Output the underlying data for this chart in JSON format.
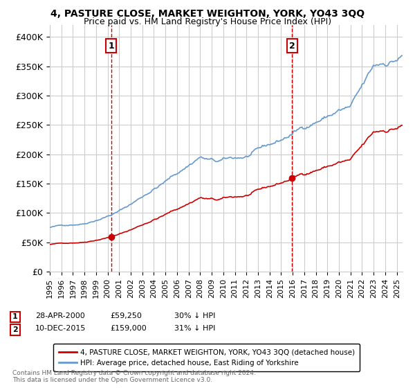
{
  "title": "4, PASTURE CLOSE, MARKET WEIGHTON, YORK, YO43 3QQ",
  "subtitle": "Price paid vs. HM Land Registry's House Price Index (HPI)",
  "legend_label_red": "4, PASTURE CLOSE, MARKET WEIGHTON, YORK, YO43 3QQ (detached house)",
  "legend_label_blue": "HPI: Average price, detached house, East Riding of Yorkshire",
  "annotation1_date": "28-APR-2000",
  "annotation1_price": "£59,250",
  "annotation1_hpi": "30% ↓ HPI",
  "annotation2_date": "10-DEC-2015",
  "annotation2_price": "£159,000",
  "annotation2_hpi": "31% ↓ HPI",
  "footer": "Contains HM Land Registry data © Crown copyright and database right 2024.\nThis data is licensed under the Open Government Licence v3.0.",
  "sale1_x": 2000.32,
  "sale1_y": 59250,
  "sale2_x": 2015.94,
  "sale2_y": 159000,
  "red_color": "#cc0000",
  "blue_color": "#6699cc",
  "vline_color": "#cc0000",
  "grid_color": "#cccccc",
  "background_color": "#ffffff",
  "ylim": [
    0,
    420000
  ],
  "xlim_start": 1995.0,
  "xlim_end": 2025.5,
  "yticks": [
    0,
    50000,
    100000,
    150000,
    200000,
    250000,
    300000,
    350000,
    400000
  ],
  "ytick_labels": [
    "£0",
    "£50K",
    "£100K",
    "£150K",
    "£200K",
    "£250K",
    "£300K",
    "£350K",
    "£400K"
  ],
  "xtick_years": [
    1995,
    1996,
    1997,
    1998,
    1999,
    2000,
    2001,
    2002,
    2003,
    2004,
    2005,
    2006,
    2007,
    2008,
    2009,
    2010,
    2011,
    2012,
    2013,
    2014,
    2015,
    2016,
    2017,
    2018,
    2019,
    2020,
    2021,
    2022,
    2023,
    2024,
    2025
  ],
  "num_points": 366
}
